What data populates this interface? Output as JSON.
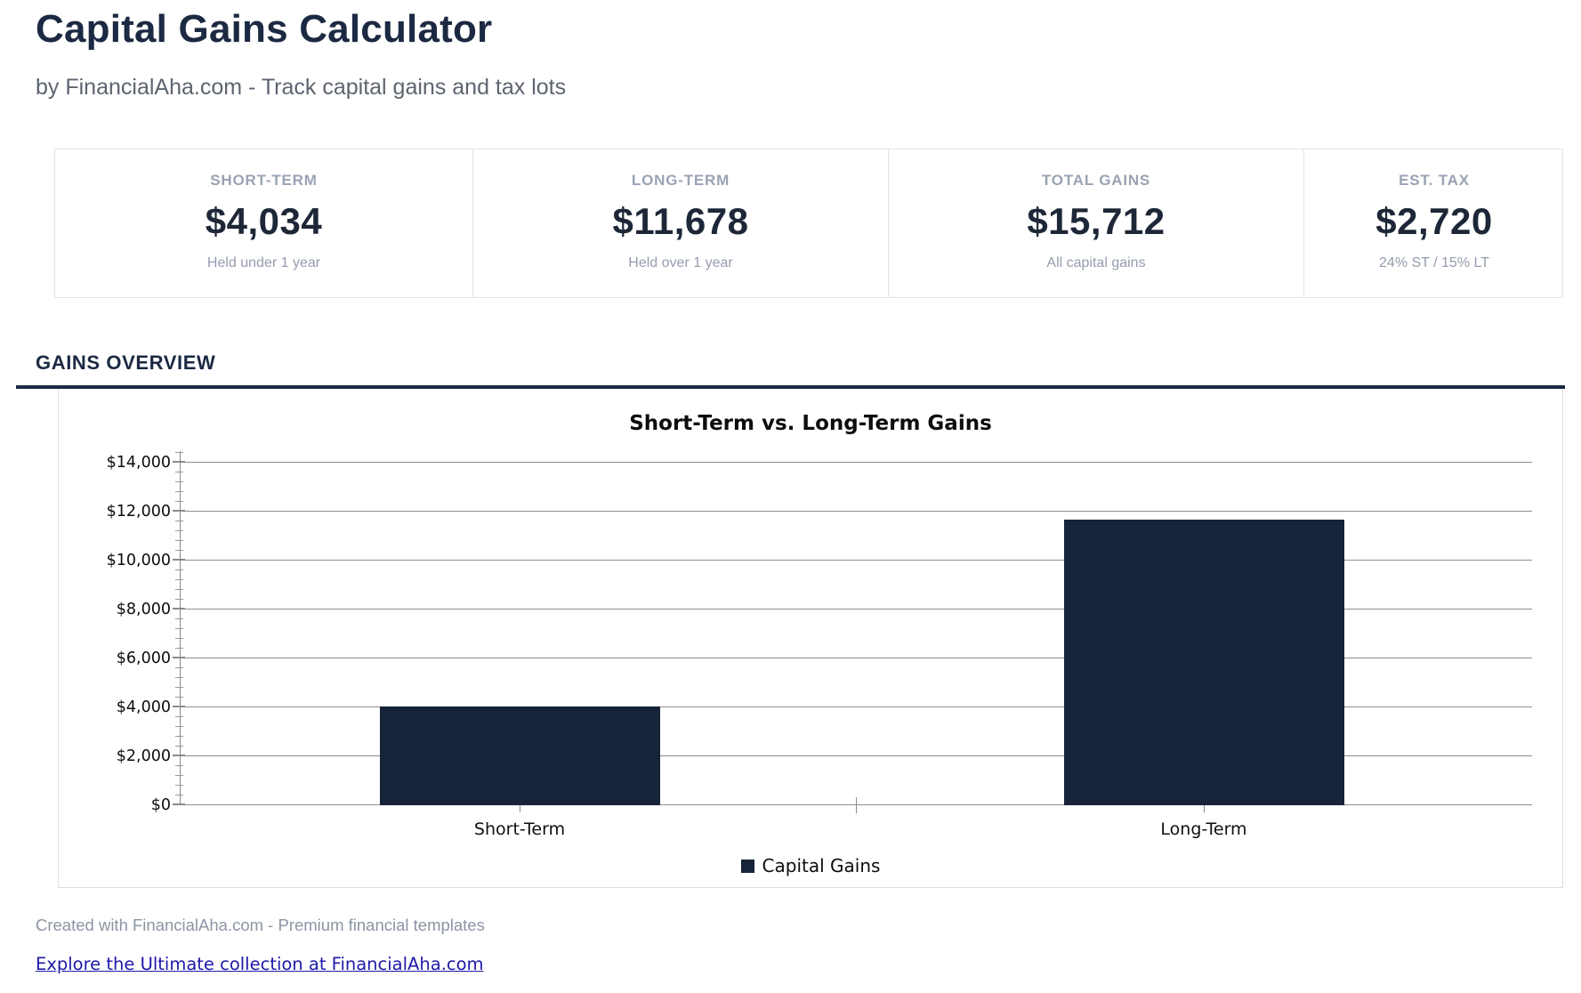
{
  "header": {
    "title": "Capital Gains Calculator",
    "subtitle": "by FinancialAha.com - Track capital gains and tax lots"
  },
  "cards": [
    {
      "label": "SHORT-TERM",
      "value": "$4,034",
      "sub": "Held under 1 year"
    },
    {
      "label": "LONG-TERM",
      "value": "$11,678",
      "sub": "Held over 1 year"
    },
    {
      "label": "TOTAL GAINS",
      "value": "$15,712",
      "sub": "All capital gains"
    },
    {
      "label": "EST. TAX",
      "value": "$2,720",
      "sub": "24% ST / 15% LT"
    }
  ],
  "section": {
    "title": "GAINS OVERVIEW"
  },
  "chart_data": {
    "type": "bar",
    "title": "Short-Term vs. Long-Term Gains",
    "categories": [
      "Short-Term",
      "Long-Term"
    ],
    "series": [
      {
        "name": "Capital Gains",
        "values": [
          4034,
          11678
        ]
      }
    ],
    "xlabel": "",
    "ylabel": "",
    "ylim": [
      0,
      14000
    ],
    "ytick_interval": 2000,
    "yminor_tick_interval": 400,
    "ytick_labels": [
      "$0",
      "$2,000",
      "$4,000",
      "$6,000",
      "$8,000",
      "$10,000",
      "$12,000",
      "$14,000"
    ],
    "grid": true,
    "legend_position": "bottom",
    "bar_color": "#162338"
  },
  "footer": {
    "note": "Created with FinancialAha.com - Premium financial templates",
    "link_text": "Explore the Ultimate collection at FinancialAha.com"
  },
  "colors": {
    "heading_navy": "#1c2942",
    "bar_navy": "#162338",
    "muted_label": "#9aa3b4",
    "muted_sub": "#949cad",
    "subtitle_gray": "#5d6470",
    "link_blue": "#1d19a8",
    "border_gray": "#e3e3e9",
    "grid_gray": "#8e8e8e"
  }
}
